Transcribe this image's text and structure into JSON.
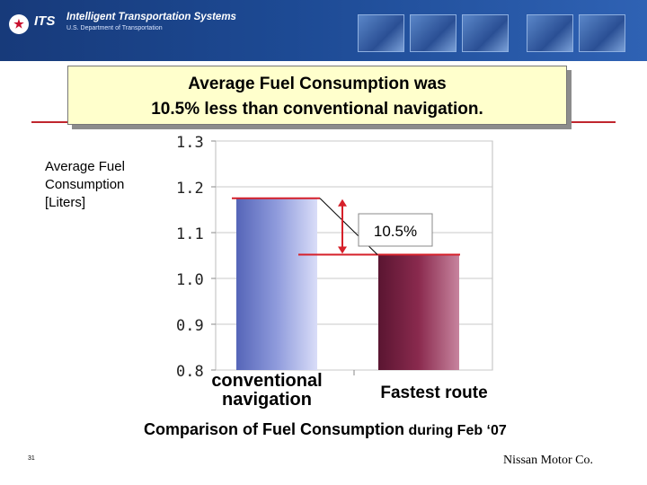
{
  "header": {
    "logo_text": "ITS",
    "org_title": "Intelligent Transportation Systems",
    "org_subtitle": "U.S. Department of Transportation",
    "thumbnails": [
      "highway-photo",
      "truck-photo",
      "traffic-photo",
      "vehicle-photo",
      "truck-photo"
    ]
  },
  "slide": {
    "title_line1": "Average Fuel Consumption was",
    "title_line2": "10.5% less than conventional navigation.",
    "y_label_line1": "Average Fuel",
    "y_label_line2": "Consumption",
    "y_label_line3": "[Liters]",
    "cat1_line1": "conventional",
    "cat1_line2": "navigation",
    "cat2": "Fastest route",
    "caption_main": "Comparison of Fuel Consumption",
    "caption_tail": "during Feb ‘07",
    "page_number": "31",
    "credit": "Nissan Motor Co."
  },
  "chart_data": {
    "type": "bar",
    "categories": [
      "conventional navigation",
      "Fastest route"
    ],
    "values": [
      1.175,
      1.052
    ],
    "ylim": [
      0.8,
      1.3
    ],
    "yticks": [
      "1.3",
      "1.2",
      "1.1",
      "1.0",
      "0.9",
      "0.8"
    ],
    "ylabel": "Average Fuel Consumption [Liters]",
    "xlabel": "",
    "title": "",
    "grid": true,
    "annotation": "10.5%",
    "colors": {
      "bar1": "#8f9bdc",
      "bar2": "#8a2a4e",
      "annotation_line": "#d6202a",
      "grid": "#c8c8c8"
    }
  }
}
